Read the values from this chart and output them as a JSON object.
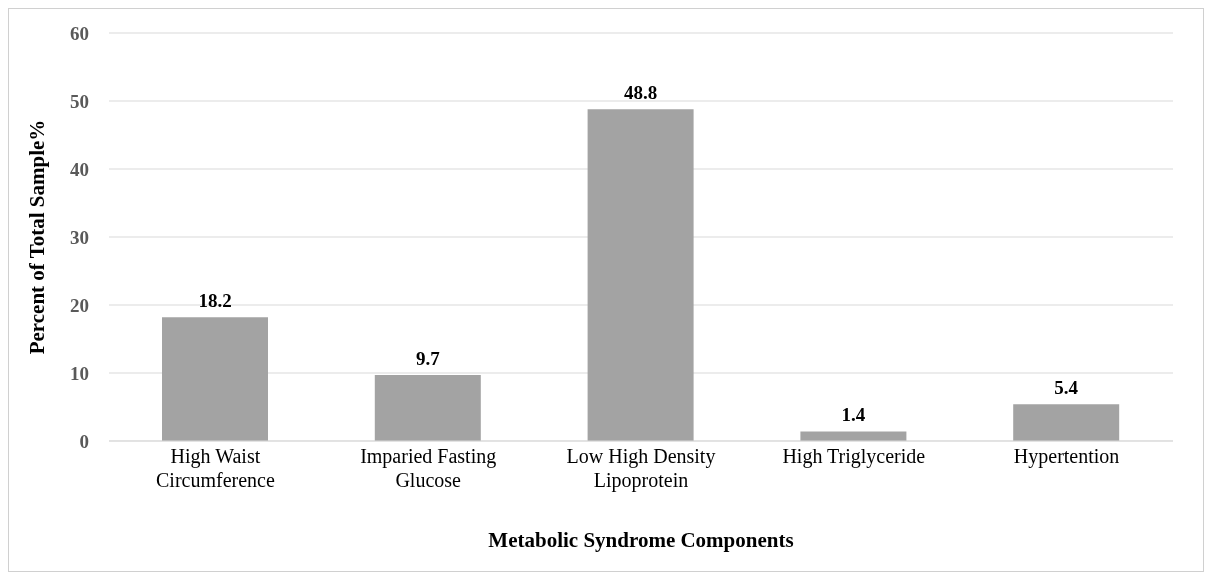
{
  "chart_data": {
    "type": "bar",
    "xlabel": "Metabolic Syndrome Components",
    "ylabel": "Percent of Total Sample%",
    "categories": [
      "High Waist Circumference",
      "Imparied Fasting Glucose",
      "Low High Density Lipoprotein",
      "High Triglyceride",
      "Hypertention"
    ],
    "values": [
      18.2,
      9.7,
      48.8,
      1.4,
      5.4
    ],
    "color": "#a3a3a3",
    "data_labels": true,
    "ylim": [
      0,
      60
    ],
    "yticks": [
      0,
      10,
      20,
      30,
      40,
      50,
      60
    ],
    "grid": "y"
  }
}
